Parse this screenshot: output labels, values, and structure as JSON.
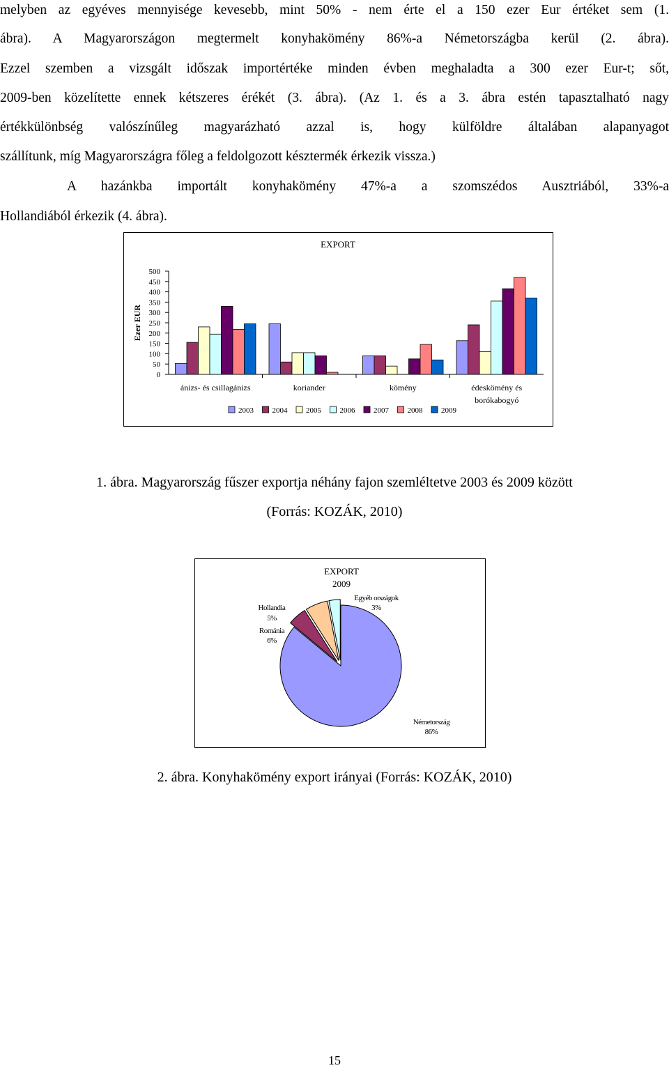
{
  "body_text": {
    "lines": [
      "melyben az egyéves mennyisége kevesebb, mint 50% - nem érte el a 150 ezer Eur értéket sem (1.",
      "ábra). A Magyarországon megtermelt konyhakömény 86%-a Németországba kerül (2. ábra).",
      "Ezzel szemben a vizsgált időszak importértéke minden évben meghaladta a 300 ezer Eur-t; sőt,",
      "2009-ben közelítette ennek kétszeres érékét (3. ábra). (Az 1. és a 3. ábra estén tapasztalható nagy",
      "értékkülönbség valószínűleg magyarázható azzal is, hogy külföldre általában alapanyagot",
      "szállítunk, míg Magyarországra főleg a feldolgozott késztermék érkezik vissza.)",
      "A hazánkba importált konyhakömény 47%-a a szomszédos Ausztriából, 33%-a",
      "Hollandiából érkezik (4. ábra)."
    ]
  },
  "figure1": {
    "caption_line1": "1.   ábra. Magyarország fűszer exportja néhány fajon szemléltetve 2003 és 2009 között",
    "caption_line2": "(Forrás: KOZÁK, 2010)"
  },
  "figure2": {
    "caption": "2.   ábra. Konyhakömény export irányai (Forrás: KOZÁK, 2010)"
  },
  "page_number": "15",
  "colors": {
    "2003": "#9999ff",
    "2004": "#993366",
    "2005": "#ffffcc",
    "2006": "#ccffff",
    "2007": "#660066",
    "2008": "#ff8080",
    "2009": "#0066cc",
    "pie_germany": "#9999ff",
    "pie_netherlands": "#993366",
    "pie_romania": "#ffcc99",
    "pie_other": "#ccffff"
  },
  "chart_data": [
    {
      "type": "bar",
      "title": "EXPORT",
      "ylabel": "Ezer EUR",
      "xlabel": "",
      "ylim": [
        0,
        500
      ],
      "yticks": [
        0,
        50,
        100,
        150,
        200,
        250,
        300,
        350,
        400,
        450,
        500
      ],
      "categories": [
        "ánizs- és csillagánizs",
        "koriander",
        "kömény",
        "édeskömény és borókabogyó"
      ],
      "legend_position": "bottom",
      "grid": false,
      "series": [
        {
          "name": "2003",
          "values": [
            53,
            245,
            90,
            163
          ]
        },
        {
          "name": "2004",
          "values": [
            155,
            60,
            90,
            240
          ]
        },
        {
          "name": "2005",
          "values": [
            230,
            105,
            40,
            110
          ]
        },
        {
          "name": "2006",
          "values": [
            195,
            105,
            0,
            355
          ]
        },
        {
          "name": "2007",
          "values": [
            330,
            90,
            75,
            415
          ]
        },
        {
          "name": "2008",
          "values": [
            218,
            10,
            145,
            470
          ]
        },
        {
          "name": "2009",
          "values": [
            245,
            0,
            70,
            370
          ]
        }
      ]
    },
    {
      "type": "pie",
      "title": "EXPORT",
      "subtitle": "2009",
      "slices": [
        {
          "label": "Németország",
          "value": 86,
          "pct_label": "86%"
        },
        {
          "label": "Hollandia",
          "value": 5,
          "pct_label": "5%"
        },
        {
          "label": "Románia",
          "value": 6,
          "pct_label": "6%"
        },
        {
          "label": "Egyéb országok",
          "value": 3,
          "pct_label": "3%"
        }
      ]
    }
  ]
}
